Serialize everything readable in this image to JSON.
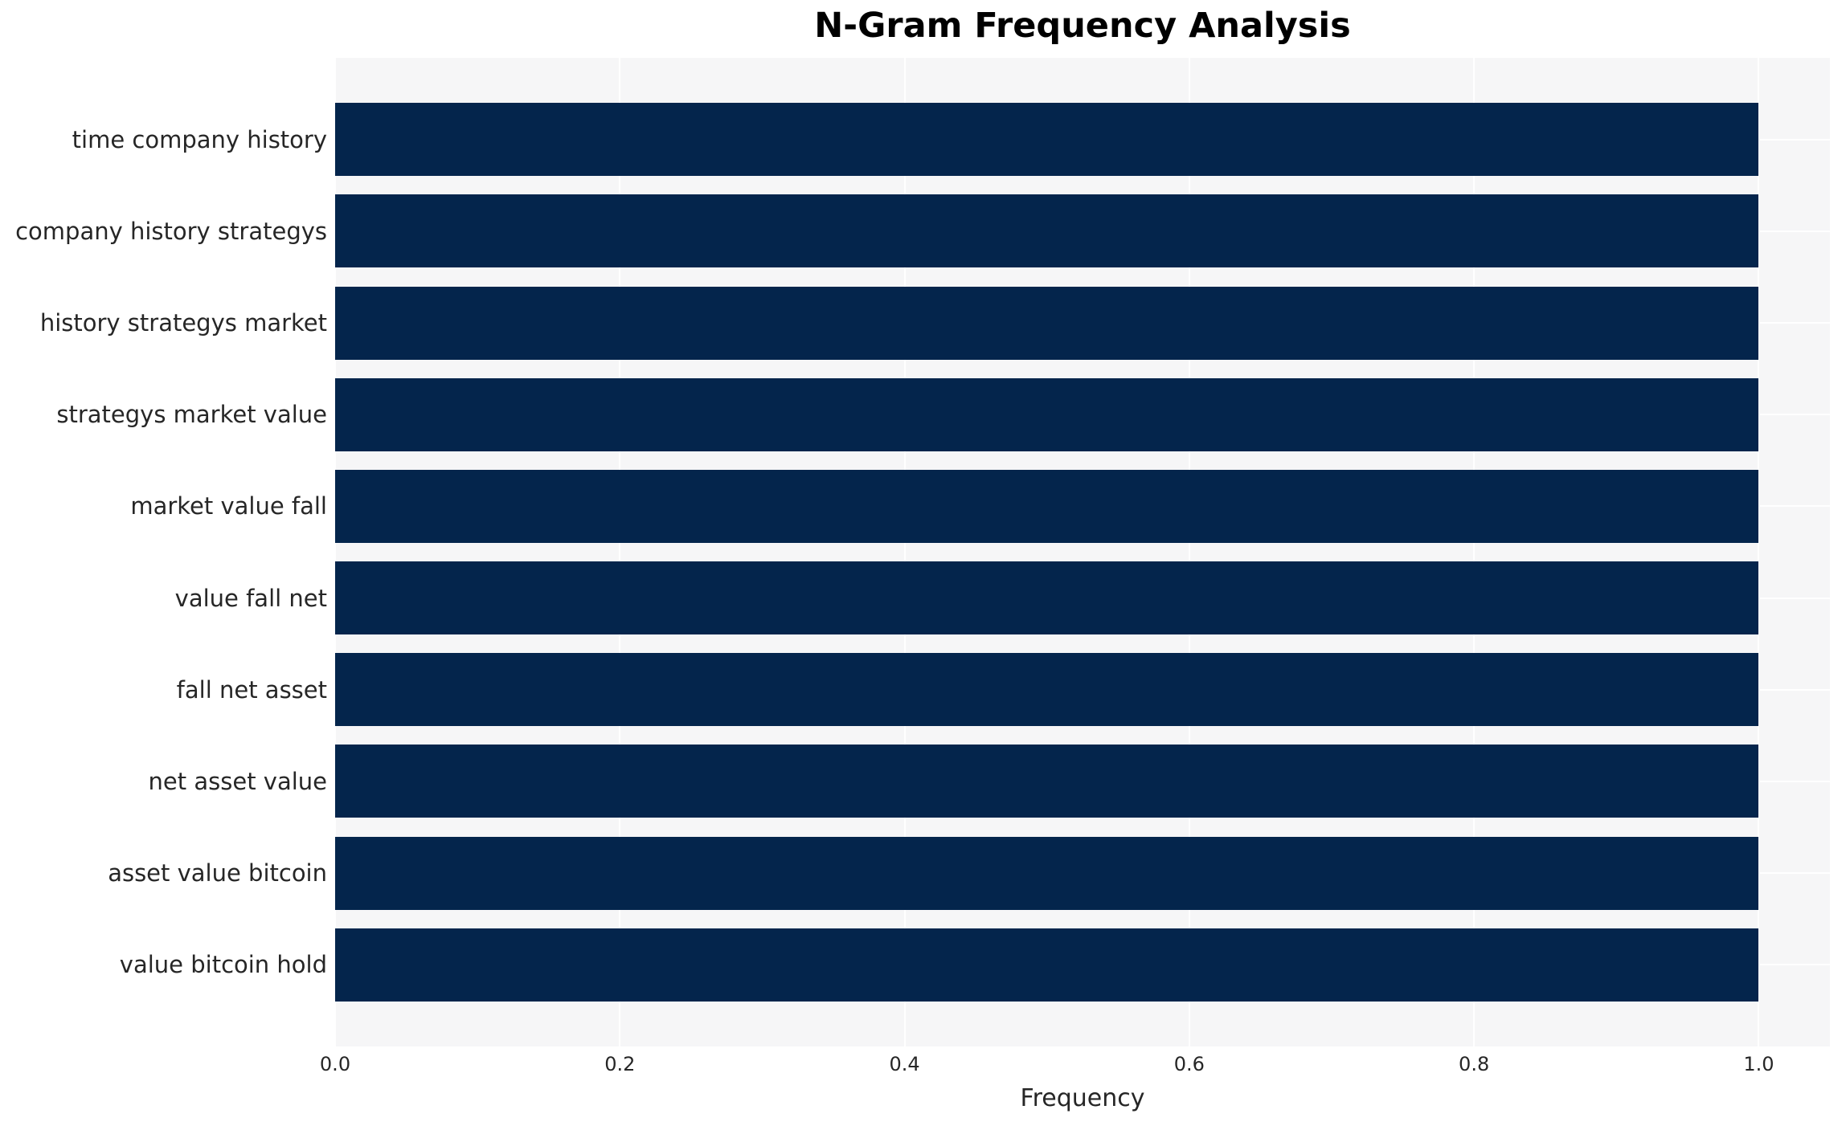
{
  "title": "N-Gram Frequency Analysis",
  "chart_data": {
    "type": "bar",
    "orientation": "horizontal",
    "title": "N-Gram Frequency Analysis",
    "xlabel": "Frequency",
    "ylabel": "",
    "categories": [
      "time company history",
      "company history strategys",
      "history strategys market",
      "strategys market value",
      "market value fall",
      "value fall net",
      "fall net asset",
      "net asset value",
      "asset value bitcoin",
      "value bitcoin hold"
    ],
    "values": [
      1.0,
      1.0,
      1.0,
      1.0,
      1.0,
      1.0,
      1.0,
      1.0,
      1.0,
      1.0
    ],
    "xlim": [
      0,
      1.05
    ],
    "xticks": [
      0.0,
      0.2,
      0.4,
      0.6,
      0.8,
      1.0
    ],
    "xtick_labels": [
      "0.0",
      "0.2",
      "0.4",
      "0.6",
      "0.8",
      "1.0"
    ],
    "grid": true,
    "legend": false,
    "colors": {
      "bar": "#04254c",
      "plot_background": "#f6f6f7",
      "gridline": "#ffffff",
      "tick_text": "#262626",
      "title_text": "#000000"
    }
  }
}
